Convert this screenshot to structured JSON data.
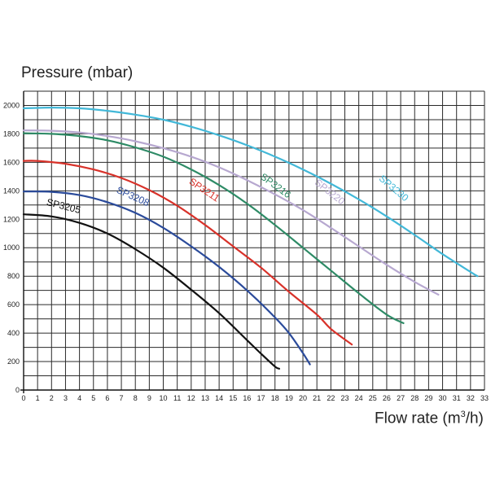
{
  "chart_data": {
    "type": "line",
    "ylabel": "Pressure (mbar)",
    "xlabel_main": "Flow rate (m",
    "xlabel_sup": "3",
    "xlabel_tail": "/h)",
    "xlim": [
      0,
      33
    ],
    "ylim": [
      0,
      2100
    ],
    "x_ticks": [
      "0",
      "1",
      "2",
      "3",
      "4",
      "5",
      "6",
      "7",
      "8",
      "9",
      "10",
      "11",
      "12",
      "13",
      "14",
      "15",
      "16",
      "17",
      "18",
      "19",
      "20",
      "21",
      "22",
      "23",
      "24",
      "25",
      "26",
      "27",
      "28",
      "29",
      "30",
      "31",
      "32",
      "33"
    ],
    "y_ticks": [
      "0",
      "200",
      "400",
      "600",
      "800",
      "1000",
      "1200",
      "1400",
      "1600",
      "1800",
      "2000"
    ],
    "grid": true,
    "series": [
      {
        "name": "SP3205",
        "color": "#111111",
        "x": [
          0,
          2,
          4,
          6,
          8,
          10,
          12,
          14,
          16,
          17,
          18,
          18.3
        ],
        "y": [
          1235,
          1220,
          1175,
          1100,
          990,
          860,
          705,
          540,
          350,
          255,
          165,
          150
        ]
      },
      {
        "name": "SP3208",
        "color": "#2b4b9b",
        "x": [
          0,
          2,
          4,
          6,
          8,
          10,
          12,
          14,
          16,
          18,
          19,
          20,
          20.5
        ],
        "y": [
          1395,
          1393,
          1370,
          1320,
          1245,
          1140,
          1010,
          865,
          700,
          510,
          400,
          260,
          180
        ]
      },
      {
        "name": "SP3211",
        "color": "#d8322a",
        "x": [
          0,
          1,
          3,
          5,
          7,
          9,
          11,
          13,
          15,
          17,
          19,
          21,
          22,
          23.5
        ],
        "y": [
          1610,
          1610,
          1590,
          1550,
          1490,
          1405,
          1295,
          1160,
          1010,
          860,
          690,
          530,
          430,
          320
        ]
      },
      {
        "name": "SP3216",
        "color": "#2e8b66",
        "x": [
          0,
          2,
          4,
          6,
          8,
          10,
          12,
          14,
          16,
          18,
          20,
          22,
          24,
          26,
          27.2
        ],
        "y": [
          1805,
          1800,
          1785,
          1755,
          1705,
          1640,
          1550,
          1440,
          1310,
          1160,
          1000,
          840,
          680,
          530,
          470
        ]
      },
      {
        "name": "SP3220",
        "color": "#b7a8d0",
        "x": [
          0,
          2,
          4,
          6,
          8,
          10,
          12,
          14,
          16,
          18,
          20,
          22,
          24,
          26,
          28,
          29.7
        ],
        "y": [
          1825,
          1822,
          1810,
          1785,
          1748,
          1700,
          1640,
          1565,
          1475,
          1375,
          1265,
          1140,
          1010,
          880,
          760,
          670
        ]
      },
      {
        "name": "SP3230",
        "color": "#42b8d8",
        "x": [
          0,
          2,
          4,
          6,
          8,
          10,
          12,
          14,
          16,
          18,
          20,
          22,
          24,
          26,
          28,
          30,
          32,
          32.5
        ],
        "y": [
          1980,
          1985,
          1980,
          1962,
          1935,
          1900,
          1850,
          1790,
          1720,
          1640,
          1550,
          1450,
          1340,
          1220,
          1090,
          955,
          830,
          800
        ]
      }
    ],
    "series_labels": [
      {
        "text": "SP3205",
        "x": 1.6,
        "y": 1300,
        "rotate": 14
      },
      {
        "text": "SP3208",
        "x": 6.6,
        "y": 1390,
        "rotate": 24
      },
      {
        "text": "SP3211",
        "x": 11.8,
        "y": 1455,
        "rotate": 34
      },
      {
        "text": "SP3216",
        "x": 16.9,
        "y": 1490,
        "rotate": 36
      },
      {
        "text": "SP3220",
        "x": 20.8,
        "y": 1450,
        "rotate": 38
      },
      {
        "text": "SP3230",
        "x": 25.4,
        "y": 1480,
        "rotate": 40
      }
    ]
  }
}
